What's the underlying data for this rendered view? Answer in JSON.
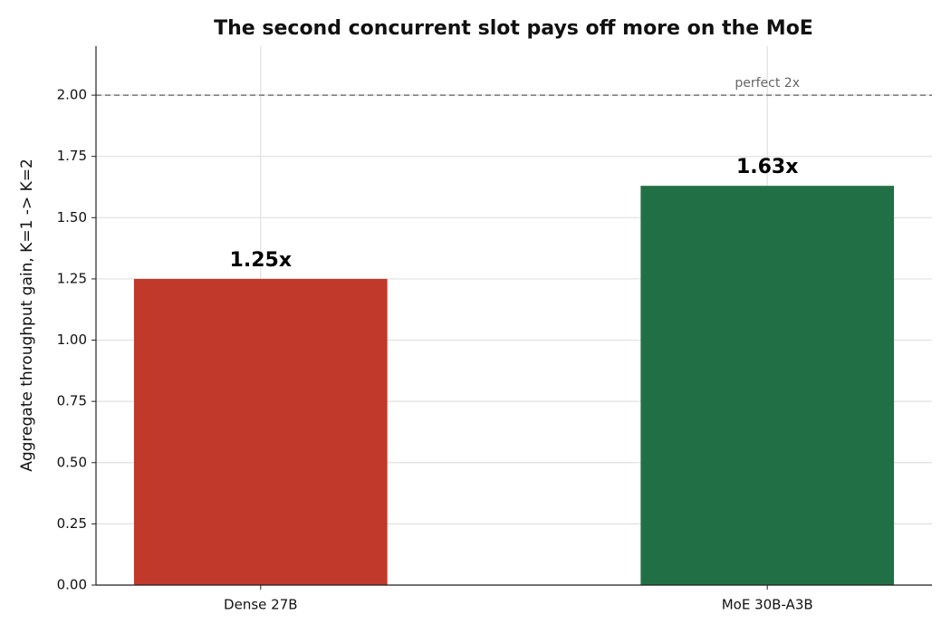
{
  "chart_data": {
    "type": "bar",
    "title": "The second concurrent slot pays off more on the MoE",
    "y_label": "Aggregate throughput gain, K=1 -> K=2",
    "categories": [
      "Dense 27B",
      "MoE 30B-A3B"
    ],
    "values": [
      1.25,
      1.63
    ],
    "value_labels": [
      "1.25x",
      "1.63x"
    ],
    "colors": [
      "#c0392b",
      "#217045"
    ],
    "ylim": [
      0,
      2.2
    ],
    "yticks": [
      {
        "value": 0,
        "label": "0.00"
      },
      {
        "value": 0.25,
        "label": "0.25"
      },
      {
        "value": 0.5,
        "label": "0.50"
      },
      {
        "value": 0.75,
        "label": "0.75"
      },
      {
        "value": 1,
        "label": "1.00"
      },
      {
        "value": 1.25,
        "label": "1.25"
      },
      {
        "value": 1.5,
        "label": "1.50"
      },
      {
        "value": 1.75,
        "label": "1.75"
      },
      {
        "value": 2,
        "label": "2.00"
      }
    ],
    "grid": true,
    "reference_line": {
      "value": 2,
      "label": "perfect 2x",
      "color": "#888888"
    }
  }
}
